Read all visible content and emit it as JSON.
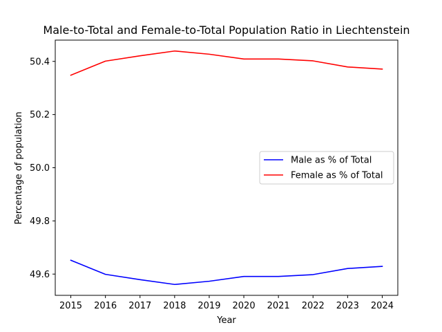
{
  "chart_data": {
    "type": "line",
    "title": "Male-to-Total and Female-to-Total Population Ratio in Liechtenstein",
    "xlabel": "Year",
    "ylabel": "Percentage of population",
    "x": [
      2015,
      2016,
      2017,
      2018,
      2019,
      2020,
      2021,
      2022,
      2023,
      2024
    ],
    "xlim": [
      2014.55,
      2024.45
    ],
    "ylim": [
      49.52,
      50.48
    ],
    "yticks": [
      49.6,
      49.8,
      50.0,
      50.2,
      50.4
    ],
    "ytick_labels": [
      "49.6",
      "49.8",
      "50.0",
      "50.2",
      "50.4"
    ],
    "xtick_labels": [
      "2015",
      "2016",
      "2017",
      "2018",
      "2019",
      "2020",
      "2021",
      "2022",
      "2023",
      "2024"
    ],
    "grid": false,
    "legend_position": "center-right",
    "series": [
      {
        "name": "Male as % of Total",
        "color": "#0000ff",
        "values": [
          49.652,
          49.599,
          49.579,
          49.561,
          49.573,
          49.591,
          49.591,
          49.598,
          49.621,
          49.629
        ]
      },
      {
        "name": "Female as % of Total",
        "color": "#ff0000",
        "values": [
          50.348,
          50.401,
          50.421,
          50.439,
          50.427,
          50.409,
          50.409,
          50.402,
          50.379,
          50.371
        ]
      }
    ]
  }
}
